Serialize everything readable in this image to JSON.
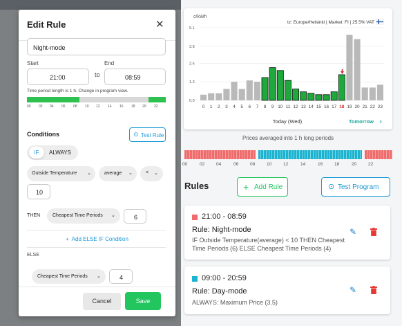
{
  "modal": {
    "title": "Edit Rule",
    "name_value": "Night-mode",
    "start_label": "Start",
    "start_value": "21:00",
    "to_label": "to",
    "end_label": "End",
    "end_value": "08:59",
    "period_hint": "Time period length is 1 h. Change in program view.",
    "timebar_ticks": [
      "00",
      "02",
      "04",
      "06",
      "08",
      "10",
      "12",
      "14",
      "16",
      "18",
      "20",
      "22"
    ],
    "conditions_label": "Conditions",
    "test_rule_label": "Test Rule",
    "if_label": "IF",
    "always_label": "ALWAYS",
    "cond_source": "Outside Temperature",
    "cond_agg": "average",
    "cond_op": "<",
    "cond_value": "10",
    "then_label": "THEN",
    "then_action": "Cheapest Time Periods",
    "then_value": "6",
    "add_else_if": "Add ELSE IF Condition",
    "else_label": "ELSE",
    "else_action": "Cheapest Time Periods",
    "else_value": "4",
    "cancel_label": "Cancel",
    "save_label": "Save"
  },
  "chart_data": {
    "type": "bar",
    "ylabel": "c/kWh",
    "header": "tz: Europe/Helsinki | Market: FI | 25.5% VAT",
    "yticks": [
      "0.0",
      "1.3",
      "2.6",
      "3.8",
      "5.1"
    ],
    "ylim": [
      0,
      5.1
    ],
    "categories": [
      "0",
      "1",
      "2",
      "3",
      "4",
      "5",
      "6",
      "7",
      "8",
      "9",
      "10",
      "11",
      "12",
      "13",
      "14",
      "15",
      "16",
      "17",
      "18",
      "19",
      "20",
      "21",
      "22",
      "23"
    ],
    "values": [
      0.4,
      0.5,
      0.5,
      0.8,
      1.3,
      0.8,
      1.4,
      1.3,
      1.6,
      2.3,
      2.1,
      1.4,
      0.8,
      0.6,
      0.5,
      0.4,
      0.4,
      0.6,
      1.8,
      4.6,
      4.3,
      0.9,
      0.9,
      1.1
    ],
    "highlighted": [
      8,
      9,
      10,
      11,
      12,
      13,
      14,
      15,
      16,
      17,
      18
    ],
    "current_hour": "18",
    "day_label": "Today (Wed)",
    "tomorrow_label": "Tomorrow",
    "colors": {
      "bar": "#b9b9b9",
      "highlight": "#1fa83c",
      "current": "#d32f2f"
    }
  },
  "averaged_note": "Prices averaged into 1 h long periods",
  "program_ticks": [
    "00",
    "02",
    "04",
    "06",
    "08",
    "10",
    "12",
    "14",
    "16",
    "18",
    "20",
    "22"
  ],
  "rules_heading": "Rules",
  "add_rule_label": "Add Rule",
  "test_program_label": "Test Program",
  "rules": [
    {
      "time": "21:00 - 08:59",
      "color": "#f06b6b",
      "name": "Rule: Night-mode",
      "desc": "IF Outside Temperature(average) < 10 THEN Cheapest Time Periods (6) ELSE Cheapest Time Periods (4)"
    },
    {
      "time": "09:00 - 20:59",
      "color": "#1bb3cf",
      "name": "Rule: Day-mode",
      "desc": "ALWAYS: Maximum Price (3.5)"
    }
  ],
  "colors": {
    "accent": "#1a9ad6",
    "green": "#22c55e",
    "red": "#e53935"
  }
}
